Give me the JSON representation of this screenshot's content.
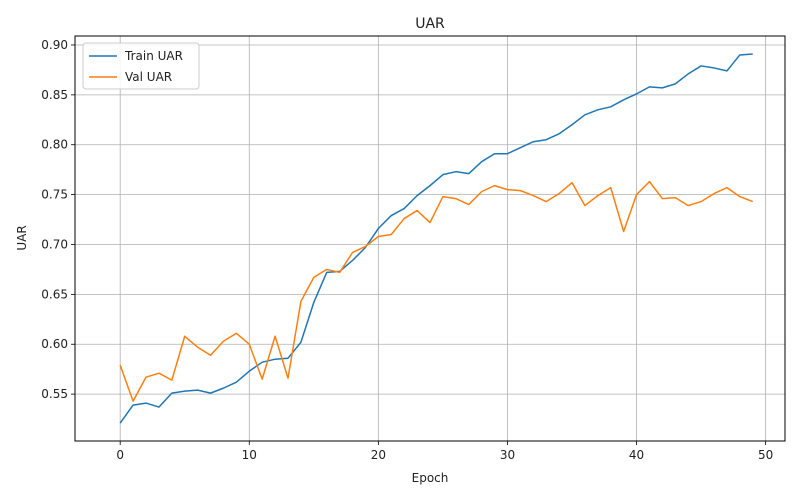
{
  "chart_data": {
    "type": "line",
    "title": "UAR",
    "xlabel": "Epoch",
    "ylabel": "UAR",
    "xlim": [
      -3.5,
      51.5
    ],
    "ylim": [
      0.503,
      0.909
    ],
    "xticks": [
      0,
      10,
      20,
      30,
      40,
      50
    ],
    "yticks": [
      0.55,
      0.6,
      0.65,
      0.7,
      0.75,
      0.8,
      0.85,
      0.9
    ],
    "grid": true,
    "legend_position": "top-left",
    "x": [
      0,
      1,
      2,
      3,
      4,
      5,
      6,
      7,
      8,
      9,
      10,
      11,
      12,
      13,
      14,
      15,
      16,
      17,
      18,
      19,
      20,
      21,
      22,
      23,
      24,
      25,
      26,
      27,
      28,
      29,
      30,
      31,
      32,
      33,
      34,
      35,
      36,
      37,
      38,
      39,
      40,
      41,
      42,
      43,
      44,
      45,
      46,
      47,
      48,
      49
    ],
    "series": [
      {
        "name": "Train UAR",
        "color": "#1f77b4",
        "values": [
          0.521,
          0.539,
          0.541,
          0.537,
          0.551,
          0.553,
          0.554,
          0.551,
          0.556,
          0.562,
          0.573,
          0.582,
          0.585,
          0.586,
          0.602,
          0.642,
          0.672,
          0.673,
          0.684,
          0.697,
          0.716,
          0.729,
          0.736,
          0.749,
          0.759,
          0.77,
          0.773,
          0.771,
          0.783,
          0.791,
          0.791,
          0.797,
          0.803,
          0.805,
          0.811,
          0.82,
          0.83,
          0.835,
          0.838,
          0.845,
          0.851,
          0.858,
          0.857,
          0.861,
          0.871,
          0.879,
          0.877,
          0.874,
          0.89,
          0.891
        ]
      },
      {
        "name": "Val UAR",
        "color": "#ff7f0e",
        "values": [
          0.579,
          0.543,
          0.567,
          0.571,
          0.564,
          0.608,
          0.597,
          0.589,
          0.603,
          0.611,
          0.6,
          0.565,
          0.608,
          0.566,
          0.643,
          0.667,
          0.675,
          0.672,
          0.692,
          0.698,
          0.708,
          0.71,
          0.726,
          0.734,
          0.722,
          0.748,
          0.746,
          0.74,
          0.753,
          0.759,
          0.755,
          0.754,
          0.749,
          0.743,
          0.751,
          0.762,
          0.739,
          0.749,
          0.757,
          0.713,
          0.75,
          0.763,
          0.746,
          0.747,
          0.739,
          0.743,
          0.751,
          0.757,
          0.748,
          0.743
        ]
      }
    ]
  }
}
